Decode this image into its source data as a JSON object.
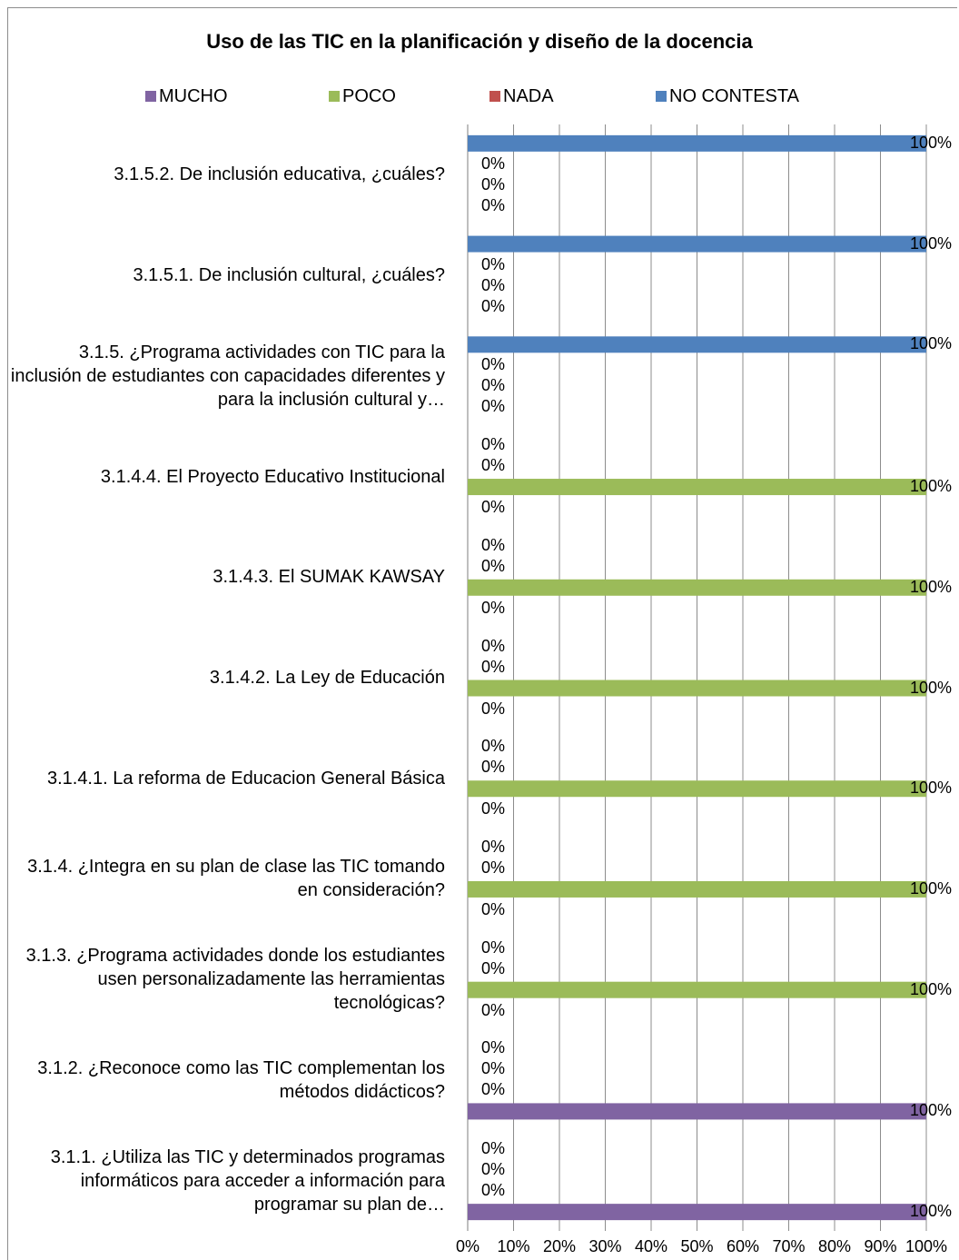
{
  "chart_data": {
    "type": "bar",
    "orientation": "horizontal",
    "title": "Uso de las TIC en la planificación y diseño de la docencia",
    "legend_position": "top",
    "grid": true,
    "xlim": [
      0,
      100
    ],
    "x_ticks": [
      "0%",
      "10%",
      "20%",
      "30%",
      "40%",
      "50%",
      "60%",
      "70%",
      "80%",
      "90%",
      "100%"
    ],
    "categories": [
      "3.1.5.2. De inclusión educativa, ¿cuáles?",
      "3.1.5.1. De inclusión cultural, ¿cuáles?",
      "3.1.5. ¿Programa actividades con TIC para la inclusión de estudiantes con capacidades diferentes y para la inclusión cultural y…",
      "3.1.4.4. El Proyecto Educativo Institucional",
      "3.1.4.3. El SUMAK KAWSAY",
      "3.1.4.2. La Ley de Educación",
      "3.1.4.1. La reforma de Educacion General Básica",
      "3.1.4. ¿Integra en su plan de clase las TIC tomando en consideración?",
      "3.1.3. ¿Programa actividades donde los estudiantes usen personalizadamente las herramientas tecnológicas?",
      "3.1.2. ¿Reconoce como las TIC complementan los métodos didácticos?",
      "3.1.1. ¿Utiliza las TIC y determinados programas informáticos para acceder a información para programar su plan de…"
    ],
    "series": [
      {
        "name": "MUCHO",
        "color": "#8064a2",
        "values": [
          0,
          0,
          0,
          0,
          0,
          0,
          0,
          0,
          0,
          100,
          100
        ]
      },
      {
        "name": "POCO",
        "color": "#9bbb59",
        "values": [
          0,
          0,
          0,
          100,
          100,
          100,
          100,
          100,
          100,
          0,
          0
        ]
      },
      {
        "name": "NADA",
        "color": "#c0504d",
        "values": [
          0,
          0,
          0,
          0,
          0,
          0,
          0,
          0,
          0,
          0,
          0
        ]
      },
      {
        "name": "NO CONTESTA",
        "color": "#4f81bd",
        "values": [
          100,
          100,
          100,
          0,
          0,
          0,
          0,
          0,
          0,
          0,
          0
        ]
      }
    ]
  }
}
